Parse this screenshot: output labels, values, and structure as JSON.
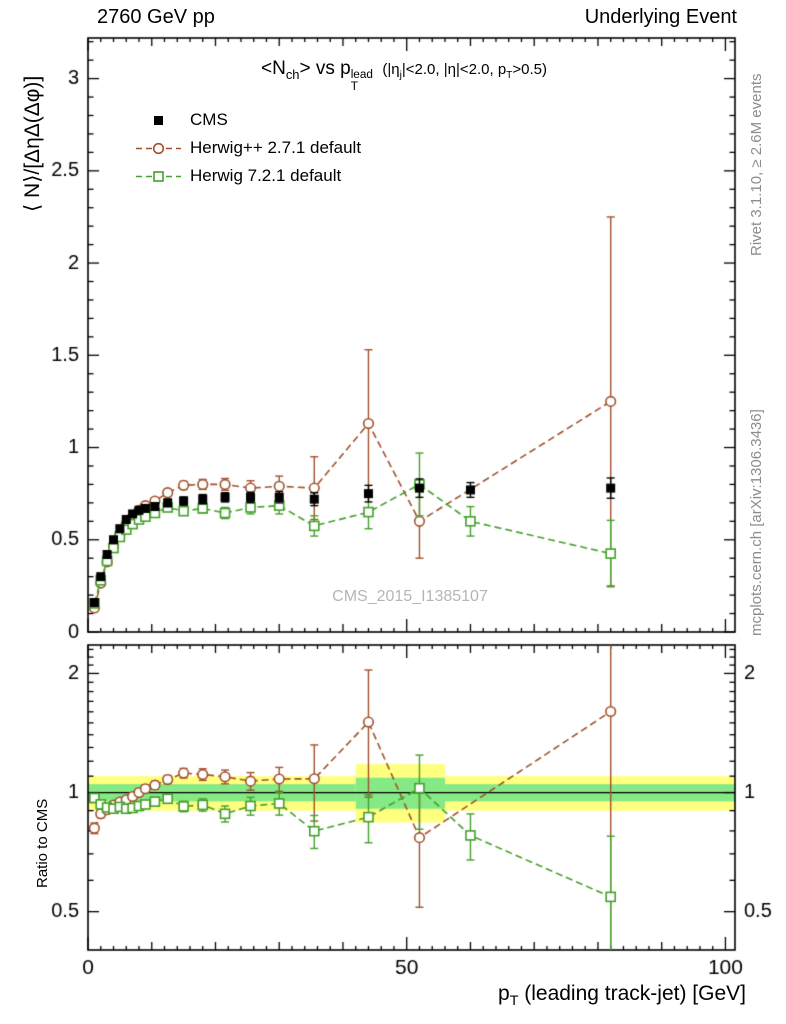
{
  "header": {
    "left": "2760 GeV pp",
    "right": "Underlying Event"
  },
  "side_notes": {
    "rivet": "Rivet 3.1.10, ≥ 2.6M events",
    "mcplots": "mcplots.cern.ch [arXiv:1306.3436]"
  },
  "watermark": "CMS_2015_I1385107",
  "title": {
    "p1": "<N",
    "p1sub": "ch",
    "p2": "> vs p",
    "p2sup": "lead",
    "p2sub": "T",
    "c1": "(|η",
    "c1sub": "j",
    "c2": "|<2.0, |η|<2.0, p",
    "c2sub": "T",
    "c3": ">0.5)"
  },
  "axes": {
    "ylabel_main": "⟨ N⟩/[ΔηΔ(Δφ)]",
    "ylabel_ratio": "Ratio to CMS",
    "xlabel_p": "p",
    "xlabel_sub": "T",
    "xlabel_rest": " (leading track-jet) [GeV]"
  },
  "chart_data": {
    "type": "scatter",
    "title": "<N_ch> vs pT^lead (|eta_j|<2.0, |eta|<2.0, pT>0.5)",
    "xlabel": "pT (leading track-jet) [GeV]",
    "ylabel": "<N>/[Δη Δ(Δφ)]",
    "ratio_ylabel": "Ratio to CMS",
    "xlim": [
      0,
      101.5
    ],
    "ylim_main": [
      0,
      3.22
    ],
    "ylim_ratio": [
      0.4,
      2.36
    ],
    "ratio_scale": "log",
    "xticks": [
      0,
      50,
      100
    ],
    "yticks_main": [
      0,
      0.5,
      1,
      1.5,
      2,
      2.5,
      3
    ],
    "yticks_ratio": [
      0.5,
      1,
      2
    ],
    "legend_position": "top-left-inside",
    "series": [
      {
        "name": "CMS",
        "marker": "square-filled",
        "color": "#000000",
        "dash": false,
        "connect": false,
        "is_reference": true,
        "x": [
          1,
          2,
          3,
          4,
          5,
          6,
          7,
          8,
          9,
          10.5,
          12.5,
          15,
          18,
          21.5,
          25.5,
          30,
          35.5,
          44,
          52,
          60,
          82
        ],
        "y": [
          0.16,
          0.3,
          0.42,
          0.5,
          0.56,
          0.61,
          0.64,
          0.66,
          0.67,
          0.68,
          0.7,
          0.71,
          0.72,
          0.73,
          0.73,
          0.73,
          0.72,
          0.75,
          0.78,
          0.77,
          0.78
        ],
        "ey": [
          0.008,
          0.01,
          0.012,
          0.014,
          0.015,
          0.016,
          0.017,
          0.018,
          0.018,
          0.02,
          0.02,
          0.022,
          0.025,
          0.025,
          0.028,
          0.03,
          0.035,
          0.045,
          0.05,
          0.04,
          0.055
        ]
      },
      {
        "name": "Herwig++ 2.7.1 default",
        "marker": "circle-open",
        "color": "#a0522d",
        "dash": true,
        "connect": true,
        "is_reference": false,
        "x": [
          1,
          2,
          3,
          4,
          5,
          6,
          7,
          8,
          9,
          10.5,
          12.5,
          15,
          18,
          21.5,
          25.5,
          30,
          35.5,
          44,
          52,
          82
        ],
        "y": [
          0.13,
          0.265,
          0.38,
          0.465,
          0.53,
          0.585,
          0.625,
          0.66,
          0.685,
          0.71,
          0.755,
          0.795,
          0.8,
          0.8,
          0.78,
          0.79,
          0.78,
          1.13,
          0.6,
          1.25
        ],
        "ey": [
          0.004,
          0.006,
          0.007,
          0.008,
          0.009,
          0.01,
          0.011,
          0.013,
          0.014,
          0.016,
          0.018,
          0.022,
          0.027,
          0.032,
          0.04,
          0.055,
          0.17,
          0.4,
          0.2,
          1.0
        ]
      },
      {
        "name": "Herwig 7.2.1 default",
        "marker": "square-open",
        "color": "#459f2b",
        "dash": true,
        "connect": true,
        "is_reference": false,
        "x": [
          1,
          2,
          3,
          4,
          5,
          6,
          7,
          8,
          9,
          10.5,
          12.5,
          15,
          18,
          21.5,
          25.5,
          30,
          35.5,
          44,
          52,
          60,
          82
        ],
        "y": [
          0.155,
          0.28,
          0.385,
          0.455,
          0.515,
          0.555,
          0.585,
          0.61,
          0.625,
          0.645,
          0.675,
          0.655,
          0.67,
          0.645,
          0.675,
          0.685,
          0.575,
          0.65,
          0.8,
          0.6,
          0.425
        ],
        "ey": [
          0.004,
          0.006,
          0.007,
          0.008,
          0.009,
          0.01,
          0.011,
          0.012,
          0.013,
          0.015,
          0.017,
          0.02,
          0.024,
          0.03,
          0.035,
          0.045,
          0.055,
          0.09,
          0.17,
          0.08,
          0.18
        ]
      }
    ],
    "ratio_bands": [
      {
        "name": "data-uncertainty-outer",
        "color": "#ffff80",
        "edges": [
          0,
          42,
          56,
          101.5
        ],
        "lo": [
          0.9,
          0.84,
          0.9
        ],
        "hi": [
          1.1,
          1.18,
          1.1
        ]
      },
      {
        "name": "data-uncertainty-inner",
        "color": "#85e985",
        "edges": [
          0,
          42,
          56,
          101.5
        ],
        "lo": [
          0.95,
          0.91,
          0.95
        ],
        "hi": [
          1.05,
          1.09,
          1.05
        ]
      }
    ],
    "ratio_reference": 1
  }
}
